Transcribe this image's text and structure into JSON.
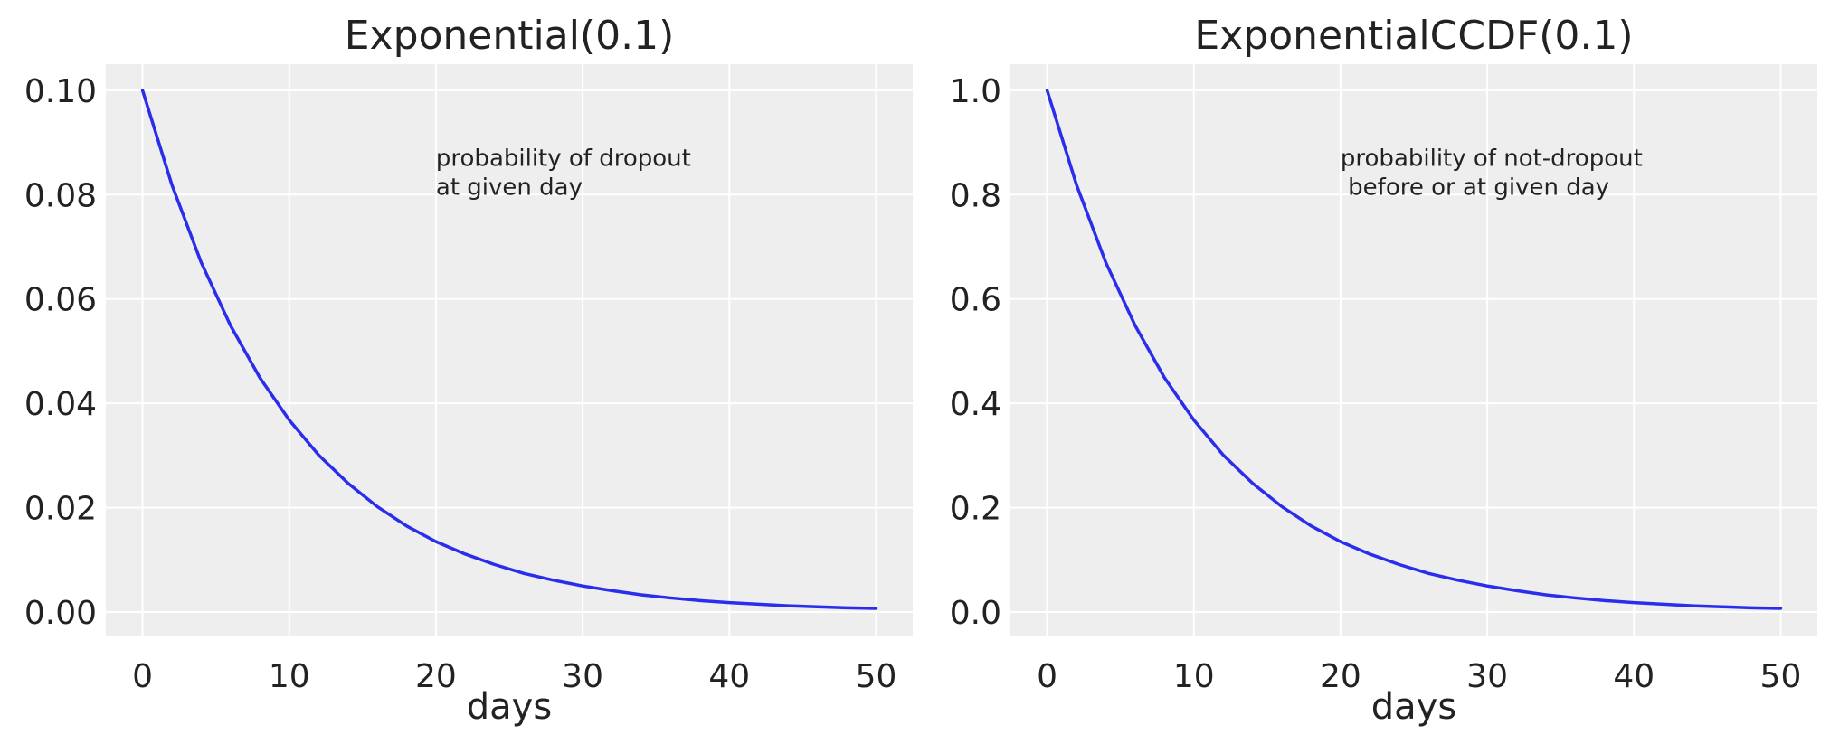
{
  "chart_data": [
    {
      "type": "line",
      "title": "Exponential(0.1)",
      "xlabel": "days",
      "ylabel": "",
      "xlim": [
        -2.5,
        52.5
      ],
      "ylim": [
        -0.0045,
        0.105
      ],
      "xticks": [
        0,
        10,
        20,
        30,
        40,
        50
      ],
      "xtick_labels": [
        "0",
        "10",
        "20",
        "30",
        "40",
        "50"
      ],
      "yticks": [
        0.0,
        0.02,
        0.04,
        0.06,
        0.08,
        0.1
      ],
      "ytick_labels": [
        "0.00",
        "0.02",
        "0.04",
        "0.06",
        "0.08",
        "0.10"
      ],
      "grid": true,
      "series": [
        {
          "color": "#2a2eec",
          "x": [
            0,
            2,
            4,
            6,
            8,
            10,
            12,
            14,
            16,
            18,
            20,
            22,
            24,
            26,
            28,
            30,
            32,
            34,
            36,
            38,
            40,
            42,
            44,
            46,
            48,
            50
          ],
          "y": [
            0.1,
            0.0819,
            0.067,
            0.0549,
            0.0449,
            0.0368,
            0.0301,
            0.0247,
            0.0202,
            0.0165,
            0.0135,
            0.0111,
            0.0091,
            0.0074,
            0.0061,
            0.005,
            0.0041,
            0.0033,
            0.0027,
            0.0022,
            0.0018,
            0.0015,
            0.0012,
            0.001,
            0.0008,
            0.0007
          ]
        }
      ],
      "annotations": [
        {
          "x": 20,
          "y": 0.08,
          "lines": [
            "probability of dropout",
            "at given day"
          ]
        }
      ]
    },
    {
      "type": "line",
      "title": "ExponentialCCDF(0.1)",
      "xlabel": "days",
      "ylabel": "",
      "xlim": [
        -2.5,
        52.5
      ],
      "ylim": [
        -0.045,
        1.05
      ],
      "xticks": [
        0,
        10,
        20,
        30,
        40,
        50
      ],
      "xtick_labels": [
        "0",
        "10",
        "20",
        "30",
        "40",
        "50"
      ],
      "yticks": [
        0.0,
        0.2,
        0.4,
        0.6,
        0.8,
        1.0
      ],
      "ytick_labels": [
        "0.0",
        "0.2",
        "0.4",
        "0.6",
        "0.8",
        "1.0"
      ],
      "grid": true,
      "series": [
        {
          "color": "#2a2eec",
          "x": [
            0,
            2,
            4,
            6,
            8,
            10,
            12,
            14,
            16,
            18,
            20,
            22,
            24,
            26,
            28,
            30,
            32,
            34,
            36,
            38,
            40,
            42,
            44,
            46,
            48,
            50
          ],
          "y": [
            1.0,
            0.819,
            0.67,
            0.549,
            0.449,
            0.368,
            0.301,
            0.247,
            0.202,
            0.165,
            0.135,
            0.111,
            0.091,
            0.074,
            0.061,
            0.05,
            0.041,
            0.033,
            0.027,
            0.022,
            0.018,
            0.015,
            0.012,
            0.01,
            0.008,
            0.007
          ]
        }
      ],
      "annotations": [
        {
          "x": 20,
          "y": 0.8,
          "lines": [
            "probability of not-dropout",
            " before or at given day"
          ]
        }
      ]
    }
  ]
}
